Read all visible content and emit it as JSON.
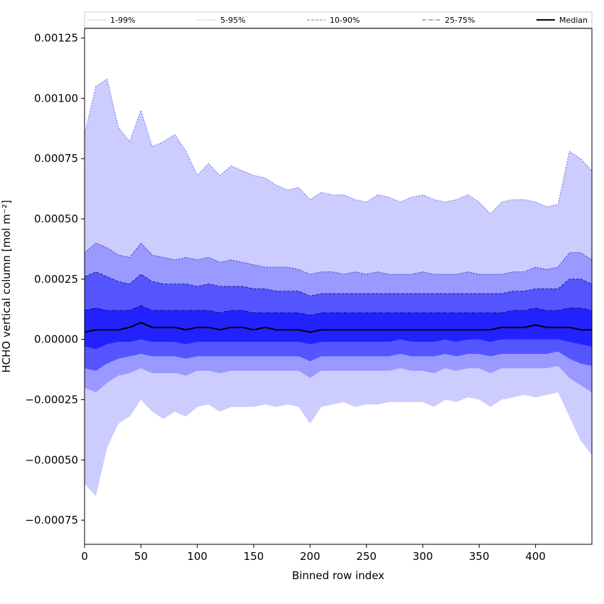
{
  "chart_data": {
    "type": "area",
    "xlabel": "Binned row index",
    "ylabel": "HCHO vertical column [mol m⁻²]",
    "xlim": [
      0,
      450
    ],
    "ylim": [
      -0.00085,
      0.00129
    ],
    "x_ticks": [
      0,
      50,
      100,
      150,
      200,
      250,
      300,
      350,
      400
    ],
    "x_tick_labels": [
      "0",
      "50",
      "100",
      "150",
      "200",
      "250",
      "300",
      "350",
      "400"
    ],
    "y_ticks": [
      -0.00075,
      -0.0005,
      -0.00025,
      0,
      0.00025,
      0.0005,
      0.00075,
      0.001,
      0.00125
    ],
    "y_tick_labels": [
      "−0.00075",
      "−0.00050",
      "−0.00025",
      "0.00000",
      "0.00025",
      "0.00050",
      "0.00075",
      "0.00100",
      "0.00125"
    ],
    "legend_position": "top",
    "grid": false,
    "legend": [
      {
        "label": "1-99%",
        "color": "#cccccc",
        "dash": "solid"
      },
      {
        "label": "5-95%",
        "color": "#8888ee",
        "dash": "dotted"
      },
      {
        "label": "10-90%",
        "color": "#7777ee",
        "dash": "dashed"
      },
      {
        "label": "25-75%",
        "color": "#4444dd",
        "dash": "dashdot"
      },
      {
        "label": "Median",
        "color": "#000000",
        "dash": "solid"
      }
    ],
    "x": [
      0,
      10,
      20,
      30,
      40,
      50,
      60,
      70,
      80,
      90,
      100,
      110,
      120,
      130,
      140,
      150,
      160,
      170,
      180,
      190,
      200,
      210,
      220,
      230,
      240,
      250,
      260,
      270,
      280,
      290,
      300,
      310,
      320,
      330,
      340,
      350,
      360,
      370,
      380,
      390,
      400,
      410,
      420,
      430,
      440,
      450
    ],
    "series": [
      {
        "name": "1-99%",
        "fill": "#ccccff",
        "upper": [
          0.00085,
          0.00105,
          0.00108,
          0.00088,
          0.00082,
          0.00095,
          0.0008,
          0.00082,
          0.00085,
          0.00078,
          0.00068,
          0.00073,
          0.00068,
          0.00072,
          0.0007,
          0.00068,
          0.00067,
          0.00064,
          0.00062,
          0.00063,
          0.00058,
          0.00061,
          0.0006,
          0.0006,
          0.00058,
          0.00057,
          0.0006,
          0.00059,
          0.00057,
          0.00059,
          0.0006,
          0.00058,
          0.00057,
          0.00058,
          0.0006,
          0.00057,
          0.00052,
          0.00057,
          0.00058,
          0.00058,
          0.00057,
          0.00055,
          0.00056,
          0.00078,
          0.00075,
          0.0007
        ],
        "lower": [
          -0.0006,
          -0.00065,
          -0.00045,
          -0.00035,
          -0.00032,
          -0.00025,
          -0.0003,
          -0.00033,
          -0.0003,
          -0.00032,
          -0.00028,
          -0.00027,
          -0.0003,
          -0.00028,
          -0.00028,
          -0.00028,
          -0.00027,
          -0.00028,
          -0.00027,
          -0.00028,
          -0.00035,
          -0.00028,
          -0.00027,
          -0.00026,
          -0.00028,
          -0.00027,
          -0.00027,
          -0.00026,
          -0.00026,
          -0.00026,
          -0.00026,
          -0.00028,
          -0.00025,
          -0.00026,
          -0.00024,
          -0.00025,
          -0.00028,
          -0.00025,
          -0.00024,
          -0.00023,
          -0.00024,
          -0.00023,
          -0.00022,
          -0.00032,
          -0.00042,
          -0.00048
        ]
      },
      {
        "name": "5-95%",
        "fill": "#9999ff",
        "upper": [
          0.00036,
          0.0004,
          0.00038,
          0.00035,
          0.00034,
          0.0004,
          0.00035,
          0.00034,
          0.00033,
          0.00034,
          0.00033,
          0.00034,
          0.00032,
          0.00033,
          0.00032,
          0.00031,
          0.0003,
          0.0003,
          0.0003,
          0.00029,
          0.00027,
          0.00028,
          0.00028,
          0.00027,
          0.00028,
          0.00027,
          0.00028,
          0.00027,
          0.00027,
          0.00027,
          0.00028,
          0.00027,
          0.00027,
          0.00027,
          0.00028,
          0.00027,
          0.00027,
          0.00027,
          0.00028,
          0.00028,
          0.0003,
          0.00029,
          0.0003,
          0.00036,
          0.00036,
          0.00033
        ],
        "lower": [
          -0.0002,
          -0.00022,
          -0.00018,
          -0.00015,
          -0.00014,
          -0.00012,
          -0.00014,
          -0.00014,
          -0.00014,
          -0.00015,
          -0.00013,
          -0.00013,
          -0.00014,
          -0.00013,
          -0.00013,
          -0.00013,
          -0.00013,
          -0.00013,
          -0.00013,
          -0.00013,
          -0.00016,
          -0.00013,
          -0.00013,
          -0.00013,
          -0.00013,
          -0.00013,
          -0.00013,
          -0.00013,
          -0.00012,
          -0.00013,
          -0.00013,
          -0.00014,
          -0.00012,
          -0.00013,
          -0.00012,
          -0.00012,
          -0.00014,
          -0.00012,
          -0.00012,
          -0.00012,
          -0.00012,
          -0.00012,
          -0.00011,
          -0.00016,
          -0.00019,
          -0.00022
        ]
      },
      {
        "name": "10-90%",
        "fill": "#5555ff",
        "upper": [
          0.00026,
          0.00028,
          0.00026,
          0.00024,
          0.00023,
          0.00027,
          0.00024,
          0.00023,
          0.00023,
          0.00023,
          0.00022,
          0.00023,
          0.00022,
          0.00022,
          0.00022,
          0.00021,
          0.00021,
          0.0002,
          0.0002,
          0.0002,
          0.00018,
          0.00019,
          0.00019,
          0.00019,
          0.00019,
          0.00019,
          0.00019,
          0.00019,
          0.00019,
          0.00019,
          0.00019,
          0.00019,
          0.00019,
          0.00019,
          0.00019,
          0.00019,
          0.00019,
          0.00019,
          0.0002,
          0.0002,
          0.00021,
          0.00021,
          0.00021,
          0.00025,
          0.00025,
          0.00023
        ],
        "lower": [
          -0.00012,
          -0.00013,
          -0.0001,
          -8e-05,
          -7e-05,
          -6e-05,
          -7e-05,
          -7e-05,
          -7e-05,
          -8e-05,
          -7e-05,
          -7e-05,
          -7e-05,
          -7e-05,
          -7e-05,
          -7e-05,
          -7e-05,
          -7e-05,
          -7e-05,
          -7e-05,
          -9e-05,
          -7e-05,
          -7e-05,
          -7e-05,
          -7e-05,
          -7e-05,
          -7e-05,
          -7e-05,
          -6e-05,
          -7e-05,
          -7e-05,
          -7e-05,
          -6e-05,
          -7e-05,
          -6e-05,
          -6e-05,
          -7e-05,
          -6e-05,
          -6e-05,
          -6e-05,
          -6e-05,
          -6e-05,
          -5e-05,
          -8e-05,
          -0.0001,
          -0.00011
        ]
      },
      {
        "name": "25-75%",
        "fill": "#2222ff",
        "upper": [
          0.00012,
          0.00013,
          0.00012,
          0.00012,
          0.00012,
          0.00014,
          0.00012,
          0.00012,
          0.00012,
          0.00012,
          0.00012,
          0.00012,
          0.00011,
          0.00012,
          0.00012,
          0.00011,
          0.00011,
          0.00011,
          0.00011,
          0.00011,
          0.0001,
          0.00011,
          0.00011,
          0.00011,
          0.00011,
          0.00011,
          0.00011,
          0.00011,
          0.00011,
          0.00011,
          0.00011,
          0.00011,
          0.00011,
          0.00011,
          0.00011,
          0.00011,
          0.00011,
          0.00011,
          0.00012,
          0.00012,
          0.00013,
          0.00012,
          0.00012,
          0.00013,
          0.00013,
          0.00012
        ],
        "lower": [
          -3e-05,
          -4e-05,
          -2e-05,
          -1e-05,
          -1e-05,
          0.0,
          -1e-05,
          -1e-05,
          -1e-05,
          -2e-05,
          -1e-05,
          -1e-05,
          -1e-05,
          -1e-05,
          -1e-05,
          -1e-05,
          -1e-05,
          -1e-05,
          -1e-05,
          -1e-05,
          -2e-05,
          -1e-05,
          -1e-05,
          -1e-05,
          -1e-05,
          -1e-05,
          -1e-05,
          -1e-05,
          0.0,
          -1e-05,
          -1e-05,
          -1e-05,
          0.0,
          -1e-05,
          0.0,
          0.0,
          -1e-05,
          0.0,
          0.0,
          0.0,
          0.0,
          0.0,
          0.0,
          -1e-05,
          -2e-05,
          -3e-05
        ]
      },
      {
        "name": "Median",
        "color": "#000000",
        "values": [
          3e-05,
          4e-05,
          4e-05,
          4e-05,
          5e-05,
          7e-05,
          5e-05,
          5e-05,
          5e-05,
          4e-05,
          5e-05,
          5e-05,
          4e-05,
          5e-05,
          5e-05,
          4e-05,
          5e-05,
          4e-05,
          4e-05,
          4e-05,
          3e-05,
          4e-05,
          4e-05,
          4e-05,
          4e-05,
          4e-05,
          4e-05,
          4e-05,
          4e-05,
          4e-05,
          4e-05,
          4e-05,
          4e-05,
          4e-05,
          4e-05,
          4e-05,
          4e-05,
          5e-05,
          5e-05,
          5e-05,
          6e-05,
          5e-05,
          5e-05,
          5e-05,
          4e-05,
          4e-05
        ]
      }
    ]
  }
}
